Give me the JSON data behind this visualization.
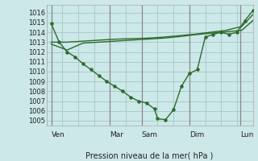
{
  "background_color": "#cce8e8",
  "grid_color": "#aacccc",
  "line_color": "#2d6a2d",
  "marker_color": "#2d6a2d",
  "xlabel": "Pression niveau de la mer( hPa )",
  "ylim": [
    1004.5,
    1016.8
  ],
  "xlim": [
    0,
    13.0
  ],
  "yticks": [
    1005,
    1006,
    1007,
    1008,
    1009,
    1010,
    1011,
    1012,
    1013,
    1014,
    1015,
    1016
  ],
  "x_day_labels": [
    "Ven",
    "Mar",
    "Sam",
    "Dim",
    "Lun"
  ],
  "x_day_positions": [
    0.3,
    4.0,
    6.0,
    9.0,
    12.2
  ],
  "xtick_vline_positions": [
    0.3,
    4.0,
    6.0,
    9.0,
    12.2
  ],
  "line1_x": [
    0.3,
    0.8,
    1.3,
    1.8,
    2.3,
    2.8,
    3.3,
    3.8,
    4.3,
    4.8,
    5.3,
    5.8,
    6.3,
    6.8,
    7.0,
    7.5,
    8.0,
    8.5,
    9.0,
    9.5,
    10.0,
    10.5,
    11.0,
    11.5,
    12.0,
    12.5,
    13.0
  ],
  "line1_y": [
    1014.9,
    1013.0,
    1012.0,
    1011.5,
    1010.8,
    1010.2,
    1009.6,
    1009.0,
    1008.5,
    1008.0,
    1007.4,
    1007.0,
    1006.8,
    1006.2,
    1005.2,
    1005.1,
    1006.1,
    1008.5,
    1009.8,
    1010.2,
    1013.5,
    1013.8,
    1014.0,
    1013.8,
    1014.0,
    1015.2,
    1016.2
  ],
  "line2_x": [
    0.3,
    1.3,
    2.3,
    3.3,
    4.3,
    5.3,
    6.3,
    7.3,
    8.3,
    9.3,
    10.3,
    11.3,
    12.3,
    13.0
  ],
  "line2_y": [
    1013.0,
    1013.0,
    1013.1,
    1013.2,
    1013.3,
    1013.35,
    1013.4,
    1013.5,
    1013.65,
    1013.8,
    1014.0,
    1014.2,
    1014.6,
    1015.8
  ],
  "line3_x": [
    0.3,
    1.3,
    2.3,
    3.3,
    4.3,
    5.3,
    6.3,
    7.3,
    8.3,
    9.3,
    10.3,
    11.3,
    12.3,
    13.0
  ],
  "line3_y": [
    1012.8,
    1012.2,
    1012.9,
    1013.0,
    1013.1,
    1013.2,
    1013.3,
    1013.4,
    1013.55,
    1013.75,
    1013.9,
    1014.05,
    1014.2,
    1015.2
  ]
}
